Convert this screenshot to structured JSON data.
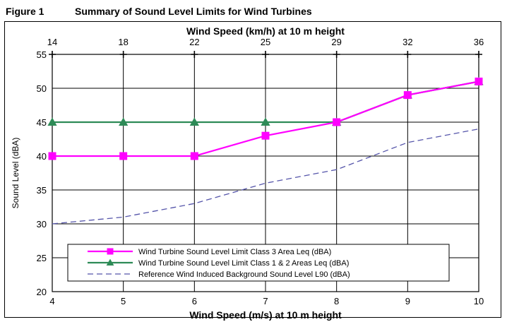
{
  "figure": {
    "label": "Figure 1",
    "title": "Summary of Sound Level Limits for Wind Turbines"
  },
  "chart_data": {
    "type": "line",
    "x2label": "Wind Speed (km/h) at 10 m height",
    "x2_ticks": [
      "14",
      "18",
      "22",
      "25",
      "29",
      "32",
      "36"
    ],
    "xlabel": "Wind Speed (m/s) at 10 m height",
    "ylabel": "Sound Level (dBA)",
    "x": [
      4,
      5,
      6,
      7,
      8,
      9,
      10
    ],
    "xlim": [
      4,
      10
    ],
    "ylim": [
      20,
      55
    ],
    "yticks": [
      20,
      25,
      30,
      35,
      40,
      45,
      50,
      55
    ],
    "grid": true,
    "legend_position": "bottom",
    "series": [
      {
        "name": "Wind Turbine Sound Level Limit Class 3 Area Leq (dBA)",
        "values": [
          40,
          40,
          40,
          43,
          45,
          49,
          51
        ],
        "color": "#ff00ff",
        "marker": "square",
        "style": "solid"
      },
      {
        "name": "Wind Turbine Sound Level Limit Class 1 & 2 Areas Leq (dBA)",
        "values": [
          45,
          45,
          45,
          45,
          45,
          49,
          51
        ],
        "color": "#2e8b57",
        "marker": "triangle",
        "style": "solid"
      },
      {
        "name": "Reference Wind Induced Background Sound Level L90 (dBA)",
        "values": [
          30,
          31,
          33,
          36,
          38,
          42,
          44
        ],
        "color": "#5555aa",
        "marker": "none",
        "style": "dashed"
      }
    ]
  }
}
